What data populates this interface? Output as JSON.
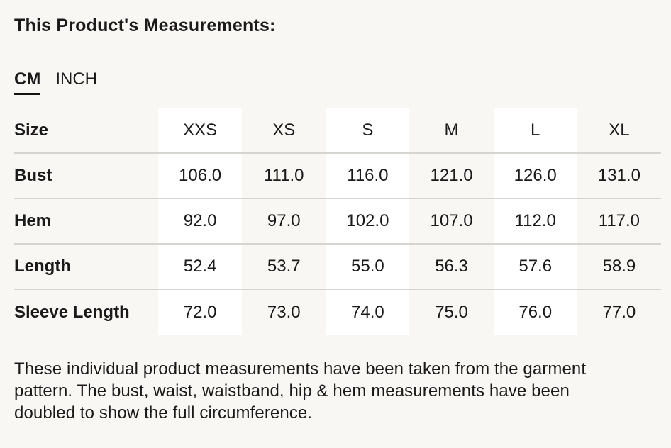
{
  "page": {
    "title": "This Product's Measurements:",
    "background_color": "#f8f7f4",
    "text_color": "#1a1a1a"
  },
  "unit_tabs": {
    "options": [
      {
        "label": "CM",
        "active": true
      },
      {
        "label": "INCH",
        "active": false
      }
    ],
    "active_underline_color": "#141414"
  },
  "table": {
    "corner_header": "Size",
    "column_headers": [
      "XXS",
      "XS",
      "S",
      "M",
      "L",
      "XL"
    ],
    "rows": [
      {
        "label": "Bust",
        "values": [
          "106.0",
          "111.0",
          "116.0",
          "121.0",
          "126.0",
          "131.0"
        ]
      },
      {
        "label": "Hem",
        "values": [
          "92.0",
          "97.0",
          "102.0",
          "107.0",
          "112.0",
          "117.0"
        ]
      },
      {
        "label": "Length",
        "values": [
          "52.4",
          "53.7",
          "55.0",
          "56.3",
          "57.6",
          "58.9"
        ]
      },
      {
        "label": "Sleeve Length",
        "values": [
          "72.0",
          "73.0",
          "74.0",
          "75.0",
          "76.0",
          "77.0"
        ]
      }
    ],
    "striped_column_headers": [
      "XXS",
      "S",
      "L"
    ],
    "stripe_color": "#ffffff",
    "divider_color": "#d6d4d0"
  },
  "footnote": {
    "lines": [
      "These individual product measurements have been taken from the garment",
      "pattern. The bust, waist, waistband, hip & hem measurements have been",
      "doubled to show the full circumference."
    ]
  }
}
